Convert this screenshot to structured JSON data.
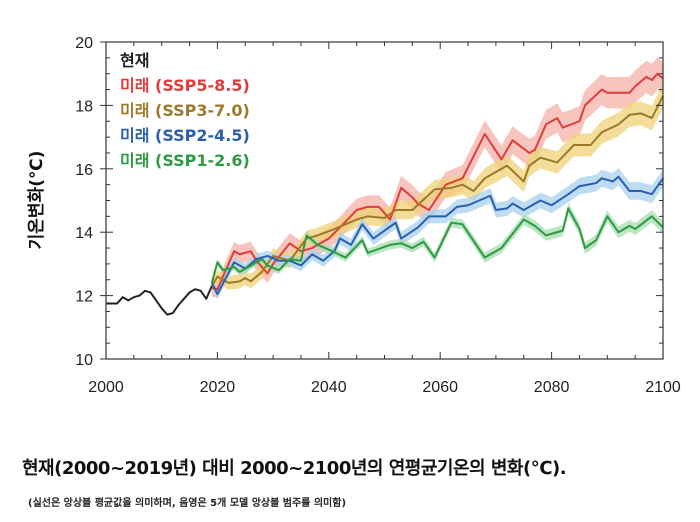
{
  "chart_data": {
    "type": "line",
    "ylabel": "기온변화(℃)",
    "xlim": [
      2000,
      2100
    ],
    "ylim": [
      10,
      20
    ],
    "xticks": [
      "2000",
      "2020",
      "2040",
      "2060",
      "2080",
      "2100"
    ],
    "yticks": [
      "10",
      "12",
      "14",
      "16",
      "18",
      "20"
    ],
    "grid": false,
    "legend_position": "top-left",
    "series": [
      {
        "name": "현재",
        "color": "#222222",
        "band": 0,
        "x": [
          2000,
          2002,
          2003,
          2004,
          2005,
          2006,
          2007,
          2008,
          2010,
          2011,
          2012,
          2013,
          2015,
          2016,
          2017,
          2018,
          2019
        ],
        "y": [
          11.75,
          11.75,
          11.95,
          11.85,
          11.95,
          12.0,
          12.15,
          12.1,
          11.6,
          11.4,
          11.45,
          11.7,
          12.1,
          12.2,
          12.15,
          11.9,
          12.3
        ]
      },
      {
        "name": "미래 (SSP5-8.5)",
        "color": "#e03c3c",
        "band_color": "#f6b2a8",
        "band": 0.4,
        "x": [
          2019,
          2020,
          2023,
          2024,
          2026,
          2027,
          2029,
          2030,
          2033,
          2035,
          2037,
          2040,
          2042,
          2045,
          2047,
          2049,
          2051,
          2053,
          2055,
          2056,
          2058,
          2061,
          2064,
          2068,
          2071,
          2073,
          2076,
          2077,
          2079,
          2081,
          2082,
          2085,
          2086,
          2089,
          2090,
          2092,
          2094,
          2095,
          2097,
          2098,
          2099,
          2100
        ],
        "y": [
          12.25,
          12.2,
          13.4,
          13.3,
          13.4,
          13.1,
          12.7,
          13.0,
          13.65,
          13.4,
          13.5,
          13.8,
          14.15,
          14.7,
          14.8,
          14.8,
          14.4,
          15.4,
          15.1,
          14.9,
          14.7,
          15.5,
          15.7,
          17.1,
          16.3,
          16.9,
          16.5,
          16.6,
          17.4,
          17.6,
          17.3,
          17.5,
          18.0,
          18.5,
          18.4,
          18.4,
          18.4,
          18.6,
          18.9,
          18.8,
          19.0,
          18.85
        ]
      },
      {
        "name": "미래 (SSP3-7.0)",
        "color": "#9b7a2a",
        "band_color": "#f0d277",
        "band": 0.3,
        "x": [
          2019,
          2020,
          2022,
          2024,
          2025,
          2026,
          2028,
          2030,
          2033,
          2036,
          2038,
          2041,
          2045,
          2047,
          2050,
          2052,
          2055,
          2059,
          2062,
          2064,
          2066,
          2068,
          2072,
          2075,
          2076,
          2078,
          2081,
          2084,
          2087,
          2089,
          2092,
          2094,
          2096,
          2098,
          2100
        ],
        "y": [
          12.3,
          12.6,
          12.4,
          12.45,
          12.55,
          12.45,
          12.75,
          13.25,
          13.1,
          13.8,
          13.9,
          14.1,
          14.4,
          14.5,
          14.45,
          14.7,
          14.7,
          15.35,
          15.4,
          15.5,
          15.3,
          15.7,
          16.1,
          15.6,
          16.1,
          16.35,
          16.2,
          16.75,
          16.75,
          17.15,
          17.4,
          17.7,
          17.75,
          17.6,
          18.3
        ]
      },
      {
        "name": "미래 (SSP2-4.5)",
        "color": "#2a5fb0",
        "band_color": "#a8d2ee",
        "band": 0.22,
        "x": [
          2019,
          2020,
          2023,
          2025,
          2027,
          2029,
          2031,
          2033,
          2035,
          2037,
          2039,
          2041,
          2042,
          2044,
          2046,
          2048,
          2052,
          2053,
          2056,
          2058,
          2061,
          2063,
          2065,
          2069,
          2070,
          2072,
          2073,
          2075,
          2078,
          2080,
          2083,
          2085,
          2088,
          2089,
          2091,
          2092,
          2094,
          2096,
          2098,
          2100
        ],
        "y": [
          12.4,
          12.05,
          13.05,
          12.85,
          13.15,
          13.25,
          13.1,
          13.1,
          12.95,
          13.3,
          13.1,
          13.4,
          13.8,
          13.6,
          14.25,
          13.8,
          14.3,
          13.8,
          14.15,
          14.5,
          14.5,
          14.8,
          14.85,
          15.15,
          14.7,
          14.75,
          14.9,
          14.7,
          15.0,
          14.85,
          15.2,
          15.45,
          15.55,
          15.7,
          15.6,
          15.75,
          15.3,
          15.3,
          15.2,
          15.7
        ]
      },
      {
        "name": "미래 (SSP1-2.6)",
        "color": "#2e9a46",
        "band_color": "#a6dcae",
        "band": 0.15,
        "x": [
          2019,
          2020,
          2021,
          2023,
          2024,
          2026,
          2028,
          2029,
          2031,
          2033,
          2035,
          2036,
          2038,
          2040,
          2043,
          2046,
          2047,
          2051,
          2053,
          2055,
          2057,
          2059,
          2062,
          2064,
          2068,
          2071,
          2075,
          2077,
          2079,
          2082,
          2083,
          2085,
          2086,
          2088,
          2090,
          2092,
          2094,
          2095,
          2098,
          2100
        ],
        "y": [
          12.4,
          13.05,
          12.8,
          12.9,
          12.75,
          12.95,
          13.15,
          12.95,
          12.8,
          13.15,
          13.1,
          13.9,
          13.6,
          13.45,
          13.2,
          13.75,
          13.35,
          13.6,
          13.65,
          13.5,
          13.7,
          13.2,
          14.3,
          14.25,
          13.2,
          13.5,
          14.4,
          14.2,
          13.9,
          14.05,
          14.75,
          14.1,
          13.5,
          13.75,
          14.5,
          14.0,
          14.2,
          14.1,
          14.5,
          14.15
        ]
      }
    ]
  },
  "caption": {
    "title": "현재(2000~2019년) 대비 2000~2100년의 연평균기온의 변화(℃).",
    "note": "(실선은 앙상블 평균값을 의미하며, 음영은 5개 모델 앙상블 범주를 의미함)"
  }
}
